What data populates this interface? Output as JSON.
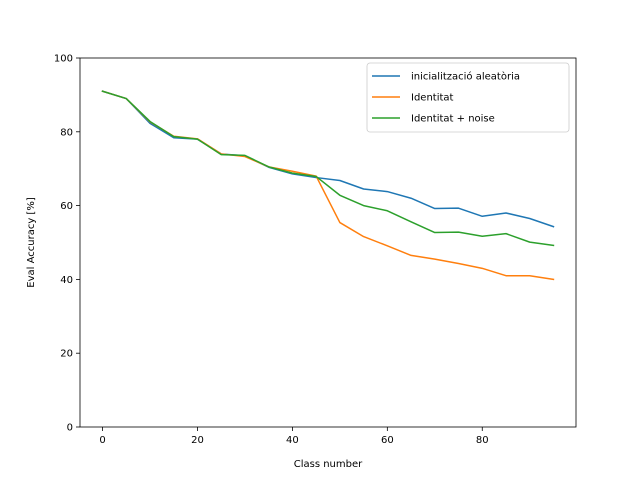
{
  "chart_data": {
    "type": "line",
    "title": "",
    "xlabel": "Class number",
    "ylabel": "Eval Accuracy [%]",
    "xlim": [
      -4.75,
      99.75
    ],
    "ylim": [
      0,
      100
    ],
    "xticks": [
      0,
      20,
      40,
      60,
      80
    ],
    "yticks": [
      0,
      20,
      40,
      60,
      80,
      100
    ],
    "grid": false,
    "legend_position": "top-right",
    "x": [
      0,
      5,
      10,
      15,
      20,
      25,
      30,
      35,
      40,
      45,
      50,
      55,
      60,
      65,
      70,
      75,
      80,
      85,
      90,
      95
    ],
    "series": [
      {
        "name": "inicialització aleatòria",
        "color": "#1f77b4",
        "values": [
          91.0,
          89.0,
          82.3,
          78.4,
          78.0,
          74.0,
          73.5,
          70.4,
          68.6,
          67.6,
          66.8,
          64.5,
          63.8,
          62.0,
          59.2,
          59.3,
          57.1,
          58.0,
          56.5,
          54.3
        ]
      },
      {
        "name": "Identitat",
        "color": "#ff7f0e",
        "values": [
          91.0,
          89.0,
          82.7,
          78.8,
          78.1,
          74.0,
          73.3,
          70.5,
          69.3,
          68.0,
          55.4,
          51.6,
          49.1,
          46.5,
          45.5,
          44.3,
          43.0,
          41.0,
          41.0,
          40.0
        ]
      },
      {
        "name": "Identitat + noise",
        "color": "#2ca02c",
        "values": [
          91.0,
          89.0,
          82.8,
          78.7,
          78.0,
          73.8,
          73.6,
          70.5,
          68.8,
          67.9,
          62.8,
          60.0,
          58.6,
          55.6,
          52.7,
          52.8,
          51.7,
          52.4,
          50.1,
          49.2
        ]
      }
    ]
  }
}
